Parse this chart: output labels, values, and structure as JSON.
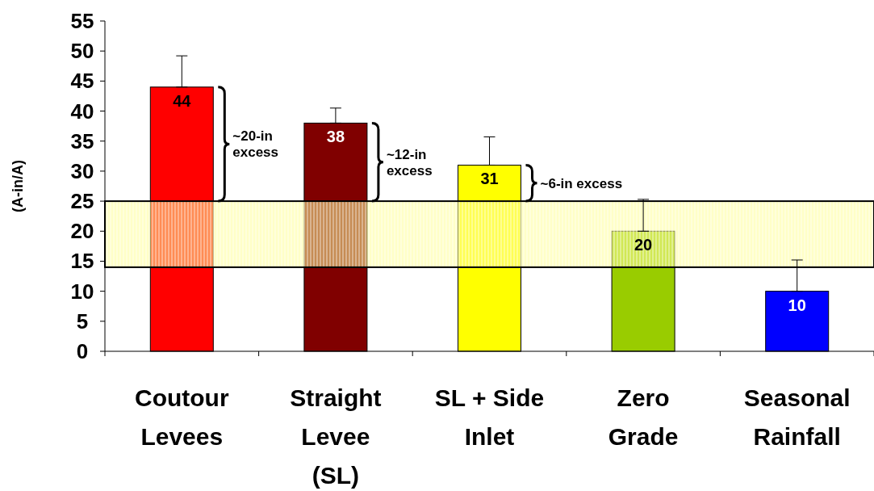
{
  "chart_data": {
    "type": "bar",
    "ylabel": "(A-in/A)",
    "categories": [
      "Coutour Levees",
      "Straight Levee (SL)",
      "SL +  Side Inlet",
      "Zero Grade",
      "Seasonal Rainfall"
    ],
    "values": [
      44,
      38,
      31,
      20,
      10
    ],
    "colors": [
      "#ff0000",
      "#800000",
      "#ffff00",
      "#99cc00",
      "#0000ff"
    ],
    "errors": [
      [
        44,
        49.2
      ],
      [
        38,
        40.5
      ],
      [
        31,
        35.7
      ],
      [
        20,
        25.3
      ],
      [
        10,
        15.2
      ]
    ],
    "data_labels": true,
    "ylim": [
      0,
      55
    ],
    "yticks": [
      0,
      5,
      10,
      15,
      20,
      25,
      30,
      35,
      40,
      45,
      50,
      55
    ],
    "bands": [
      {
        "axis": "y",
        "from": 14,
        "to": 25,
        "color": "#ffff99"
      }
    ],
    "annotations": [
      "~20-in excess",
      "~12-in excess",
      "~6-in excess"
    ],
    "grid": false
  }
}
